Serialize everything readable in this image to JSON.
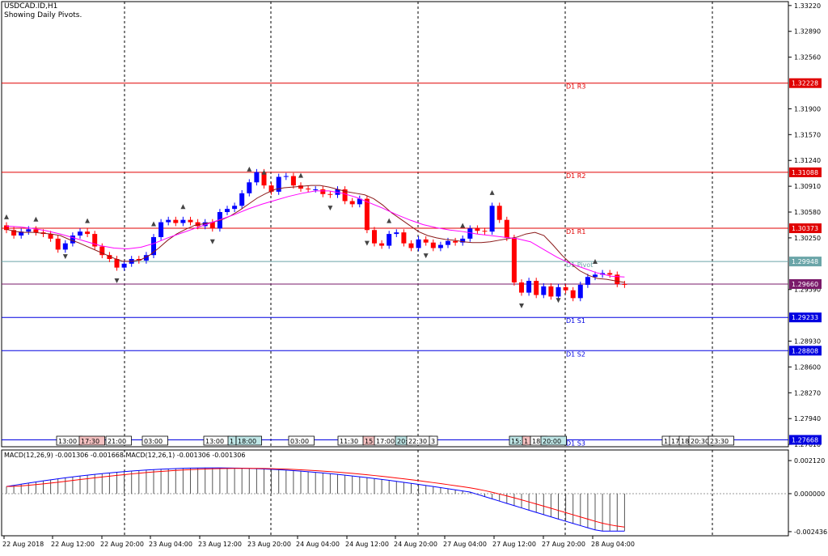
{
  "chart_header": {
    "symbol": "USDCAD.ID,H1",
    "subtitle": "Showing Daily Pivots."
  },
  "price_axis": {
    "ticks": [
      "1.33220",
      "1.32890",
      "1.32560",
      "1.31900",
      "1.31570",
      "1.31240",
      "1.30910",
      "1.30580",
      "1.30250",
      "1.29590",
      "1.28930",
      "1.28600",
      "1.28270",
      "1.27940",
      "1.27610"
    ]
  },
  "pivots": [
    {
      "label": "D1 R3",
      "value": "1.32228",
      "color": "#e00000"
    },
    {
      "label": "D1 R2",
      "value": "1.31088",
      "color": "#e00000"
    },
    {
      "label": "D1 R1",
      "value": "1.30373",
      "color": "#e00000"
    },
    {
      "label": "D1 Pivot",
      "value": "1.29948",
      "color": "#6aa5a8"
    },
    {
      "label": "",
      "value": "1.29660",
      "color": "#7a1a6a"
    },
    {
      "label": "D1 S1",
      "value": "1.29233",
      "color": "#0000e0"
    },
    {
      "label": "D1 S2",
      "value": "1.28808",
      "color": "#0000e0"
    },
    {
      "label": "D1 S3",
      "value": "1.27668",
      "color": "#0000e0"
    }
  ],
  "session_labels": [
    {
      "text": "13:00",
      "bg": "#ffffff"
    },
    {
      "text": "17:30",
      "bg": "#f4c0c0"
    },
    {
      "text": "21:00",
      "bg": "#ffffff"
    },
    {
      "text": "03:00",
      "bg": "#ffffff"
    },
    {
      "text": "13:00",
      "bg": "#ffffff"
    },
    {
      "text": "1",
      "bg": "#bfe6e6"
    },
    {
      "text": "18:00",
      "bg": "#bfe6e6"
    },
    {
      "text": "03:00",
      "bg": "#ffffff"
    },
    {
      "text": "11:30",
      "bg": "#ffffff"
    },
    {
      "text": "15",
      "bg": "#f4c0c0"
    },
    {
      "text": "17:00",
      "bg": "#ffffff"
    },
    {
      "text": "20:",
      "bg": "#bfe6e6"
    },
    {
      "text": "22:30",
      "bg": "#ffffff"
    },
    {
      "text": "3",
      "bg": "#ffffff"
    },
    {
      "text": "15:",
      "bg": "#bfe6e6"
    },
    {
      "text": "1",
      "bg": "#f4c0c0"
    },
    {
      "text": "18:",
      "bg": "#ffffff"
    },
    {
      "text": "20:00",
      "bg": "#bfe6e6"
    },
    {
      "text": "1",
      "bg": "#ffffff"
    },
    {
      "text": "17",
      "bg": "#ffffff"
    },
    {
      "text": "18",
      "bg": "#ffffff"
    },
    {
      "text": "20:30",
      "bg": "#ffffff"
    },
    {
      "text": "23:30",
      "bg": "#ffffff"
    }
  ],
  "macd": {
    "label": "MACD(12,26,9) -0.001306 -0.001668 MACD(12,26,1) -0.001306 -0.001306",
    "ticks": [
      "0.002120",
      "0.000000",
      "-0.002436"
    ]
  },
  "time_axis": {
    "labels": [
      "22 Aug 2018",
      "22 Aug 12:00",
      "22 Aug 20:00",
      "23 Aug 04:00",
      "23 Aug 12:00",
      "23 Aug 20:00",
      "24 Aug 04:00",
      "24 Aug 12:00",
      "24 Aug 20:00",
      "27 Aug 04:00",
      "27 Aug 12:00",
      "27 Aug 20:00",
      "28 Aug 04:00"
    ]
  },
  "colors": {
    "bull_candle": "#0000ff",
    "bear_candle": "#ff0000",
    "ma_fast": "#8b1a1a",
    "ma_slow": "#ff00ff",
    "macd_line": "#0000ff",
    "signal_line": "#ff0000",
    "histogram": "#555555"
  },
  "chart_data": {
    "type": "candlestick",
    "symbol": "USDCAD.ID",
    "timeframe": "H1",
    "ylim": [
      1.2758,
      1.3327
    ],
    "close": [
      1.3035,
      1.3028,
      1.3033,
      1.3036,
      1.3032,
      1.303,
      1.3024,
      1.301,
      1.3018,
      1.3028,
      1.3033,
      1.303,
      1.3014,
      1.3003,
      1.2998,
      1.2987,
      1.2992,
      1.2998,
      1.2996,
      1.3003,
      1.3026,
      1.3045,
      1.3048,
      1.3044,
      1.3048,
      1.3045,
      1.304,
      1.3045,
      1.3037,
      1.3058,
      1.3062,
      1.3066,
      1.3082,
      1.3096,
      1.3109,
      1.3092,
      1.3084,
      1.3103,
      1.3104,
      1.3092,
      1.3088,
      1.3087,
      1.3087,
      1.3081,
      1.308,
      1.3087,
      1.3072,
      1.3068,
      1.3075,
      1.3035,
      1.3018,
      1.3015,
      1.303,
      1.3032,
      1.3018,
      1.3012,
      1.3023,
      1.3019,
      1.3012,
      1.3016,
      1.3021,
      1.3019,
      1.3024,
      1.3037,
      1.3034,
      1.3033,
      1.3066,
      1.3048,
      1.3025,
      1.2968,
      1.2955,
      1.297,
      1.2952,
      1.2963,
      1.295,
      1.2962,
      1.2958,
      1.2948,
      1.2965,
      1.2975,
      1.2978,
      1.298,
      1.2978,
      1.2966,
      1.2965
    ],
    "ma_fast": [
      1.3036,
      1.3033,
      1.3032,
      1.3032,
      1.3031,
      1.303,
      1.3028,
      1.3023,
      1.3019,
      1.3014,
      1.3009,
      1.3004,
      1.2999,
      1.2995,
      1.2995,
      1.2997,
      1.3003,
      1.3012,
      1.3022,
      1.303,
      1.3036,
      1.3041,
      1.3043,
      1.3045,
      1.3048,
      1.3053,
      1.306,
      1.3068,
      1.3076,
      1.3082,
      1.3087,
      1.3089,
      1.309,
      1.3091,
      1.3092,
      1.3092,
      1.309,
      1.3087,
      1.3084,
      1.3082,
      1.308,
      1.3075,
      1.3067,
      1.3057,
      1.3049,
      1.3041,
      1.3033,
      1.3028,
      1.3025,
      1.3023,
      1.3022,
      1.302,
      1.3019,
      1.3019,
      1.302,
      1.3022,
      1.3024,
      1.3026,
      1.303,
      1.3032,
      1.3028,
      1.3016,
      1.3003,
      1.2992,
      1.2983,
      1.2977,
      1.2973,
      1.2972,
      1.297,
      1.2968
    ],
    "ma_slow": [
      1.304,
      1.3039,
      1.3037,
      1.3034,
      1.303,
      1.3025,
      1.302,
      1.3015,
      1.3012,
      1.3011,
      1.3013,
      1.3018,
      1.3025,
      1.3031,
      1.3037,
      1.3043,
      1.3049,
      1.3055,
      1.3062,
      1.3068,
      1.3073,
      1.3078,
      1.3082,
      1.3085,
      1.3085,
      1.3082,
      1.3077,
      1.307,
      1.3063,
      1.3055,
      1.3048,
      1.3042,
      1.3038,
      1.3035,
      1.3033,
      1.303,
      1.3028,
      1.3026,
      1.3024,
      1.302,
      1.301,
      1.3,
      1.2992,
      1.2986,
      1.298,
      1.2976,
      1.2975
    ]
  }
}
